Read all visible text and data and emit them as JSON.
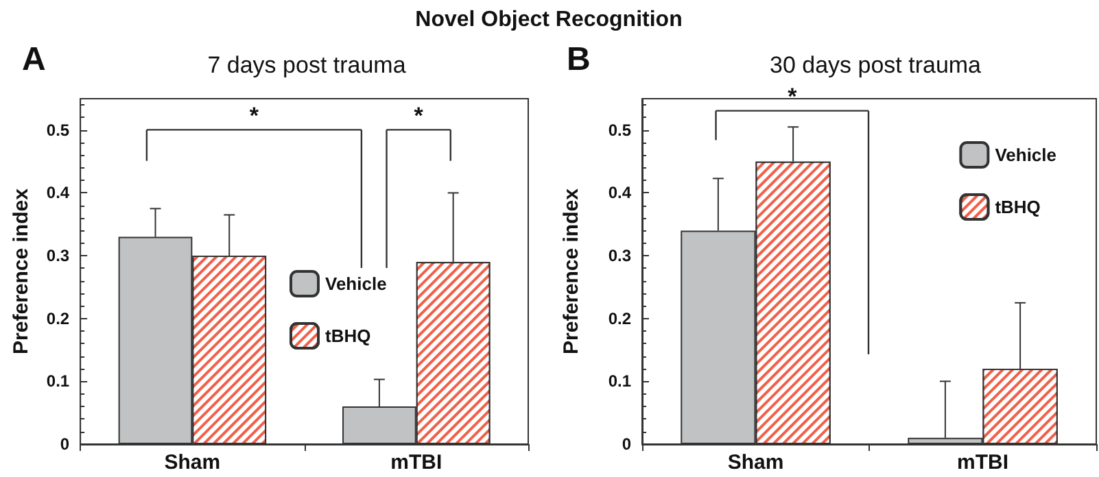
{
  "chart_data": [
    {
      "type": "bar",
      "title": "7 days post trauma",
      "ylabel": "Preference index",
      "categories": [
        "Sham",
        "mTBI"
      ],
      "series": [
        {
          "name": "Vehicle",
          "color": "#c0c2c3",
          "values": [
            0.33,
            0.06
          ],
          "errors": [
            0.045,
            0.043
          ]
        },
        {
          "name": "tBHQ",
          "color": "#f0604a",
          "values": [
            0.3,
            0.29
          ],
          "errors": [
            0.065,
            0.11
          ]
        }
      ],
      "ylim": [
        0,
        0.55
      ],
      "yticks": [
        0,
        0.1,
        0.2,
        0.3,
        0.4,
        0.5
      ],
      "legend": "center",
      "grid": false,
      "annotations": [
        "Novel Object Recognition",
        "A",
        "*",
        "*"
      ]
    },
    {
      "type": "bar",
      "title": "30 days post trauma",
      "ylabel": "Preference index",
      "categories": [
        "Sham",
        "mTBI"
      ],
      "series": [
        {
          "name": "Vehicle",
          "color": "#c0c2c3",
          "values": [
            0.34,
            0.01
          ],
          "errors": [
            0.083,
            0.09
          ]
        },
        {
          "name": "tBHQ",
          "color": "#f0604a",
          "values": [
            0.45,
            0.12
          ],
          "errors": [
            0.055,
            0.105
          ]
        }
      ],
      "ylim": [
        0,
        0.55
      ],
      "yticks": [
        0,
        0.1,
        0.2,
        0.3,
        0.4,
        0.5
      ],
      "legend": "top right",
      "grid": false,
      "annotations": [
        "B",
        "*"
      ]
    }
  ]
}
